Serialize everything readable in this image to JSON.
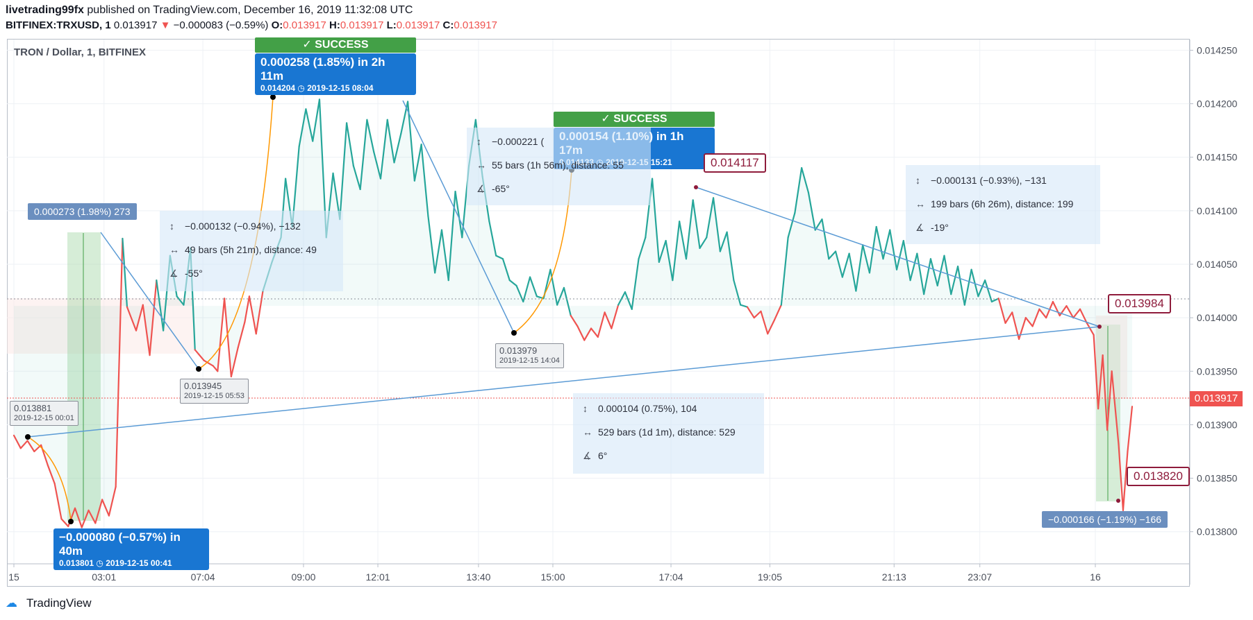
{
  "header": {
    "publisher": "livetrading99fx",
    "published_text": "published on TradingView.com, December 16, 2019 11:32:08 UTC",
    "symbol": "BITFINEX:TRXUSD, 1",
    "last": "0.013917",
    "change": "−0.000083 (−0.59%)",
    "o_label": "O:",
    "o": "0.013917",
    "h_label": "H:",
    "h": "0.013917",
    "l_label": "L:",
    "l": "0.013917",
    "c_label": "C:",
    "c": "0.013917"
  },
  "chart_title": "TRON / Dollar, 1, BITFINEX",
  "current_price": "0.013917",
  "colors": {
    "up": "#26a69a",
    "down": "#ef5350",
    "callout": "#1976d2",
    "success": "#43a047",
    "pathline": "#ff9800",
    "trend": "#5b9bd5",
    "note_border": "#8e1b3b"
  },
  "chart_data": {
    "type": "line",
    "ylim": [
      0.01377,
      0.01426
    ],
    "y_ticks": [
      "0.014250",
      "0.014200",
      "0.014150",
      "0.014100",
      "0.014050",
      "0.014000",
      "0.013950",
      "0.013900",
      "0.013850",
      "0.013800"
    ],
    "x_ticks": [
      "15",
      "03:01",
      "07:04",
      "09:00",
      "12:01",
      "13:40",
      "15:00",
      "17:04",
      "19:05",
      "21:13",
      "23:07",
      "16"
    ],
    "reference_price": 0.014011,
    "series": [
      {
        "values": [
          [
            0,
            0.01389
          ],
          [
            6,
            0.013878
          ],
          [
            12,
            0.013885
          ],
          [
            18,
            0.013875
          ],
          [
            24,
            0.013881
          ],
          [
            30,
            0.013862
          ],
          [
            36,
            0.013845
          ],
          [
            42,
            0.013812
          ],
          [
            48,
            0.013805
          ],
          [
            54,
            0.013822
          ],
          [
            60,
            0.013804
          ],
          [
            66,
            0.01382
          ],
          [
            72,
            0.013808
          ],
          [
            78,
            0.01383
          ],
          [
            84,
            0.013815
          ],
          [
            90,
            0.013842
          ],
          [
            96,
            0.014074
          ],
          [
            100,
            0.01401
          ],
          [
            108,
            0.013988
          ],
          [
            114,
            0.014012
          ],
          [
            120,
            0.013965
          ],
          [
            126,
            0.014035
          ],
          [
            132,
            0.013988
          ],
          [
            138,
            0.014058
          ],
          [
            144,
            0.01402
          ],
          [
            150,
            0.014012
          ],
          [
            156,
            0.014065
          ],
          [
            160,
            0.01397
          ],
          [
            168,
            0.01396
          ],
          [
            176,
            0.013955
          ],
          [
            180,
            0.01395
          ],
          [
            186,
            0.014018
          ],
          [
            192,
            0.013945
          ],
          [
            198,
            0.013972
          ],
          [
            204,
            0.013996
          ],
          [
            208,
            0.01402
          ],
          [
            214,
            0.013985
          ],
          [
            220,
            0.014025
          ],
          [
            228,
            0.014052
          ],
          [
            236,
            0.014075
          ],
          [
            240,
            0.01413
          ],
          [
            246,
            0.014085
          ],
          [
            252,
            0.01416
          ],
          [
            258,
            0.014195
          ],
          [
            264,
            0.014165
          ],
          [
            270,
            0.014204
          ],
          [
            276,
            0.014075
          ],
          [
            282,
            0.014135
          ],
          [
            288,
            0.014092
          ],
          [
            294,
            0.014182
          ],
          [
            300,
            0.014142
          ],
          [
            306,
            0.01412
          ],
          [
            312,
            0.014185
          ],
          [
            318,
            0.014155
          ],
          [
            324,
            0.01413
          ],
          [
            330,
            0.014185
          ],
          [
            336,
            0.014145
          ],
          [
            342,
            0.014172
          ],
          [
            348,
            0.014202
          ],
          [
            354,
            0.014128
          ],
          [
            360,
            0.014162
          ],
          [
            366,
            0.014095
          ],
          [
            372,
            0.014042
          ],
          [
            378,
            0.014082
          ],
          [
            384,
            0.014035
          ],
          [
            390,
            0.014118
          ],
          [
            396,
            0.014075
          ],
          [
            402,
            0.014142
          ],
          [
            408,
            0.014185
          ],
          [
            414,
            0.014132
          ],
          [
            420,
            0.01409
          ],
          [
            426,
            0.014058
          ],
          [
            432,
            0.014055
          ],
          [
            438,
            0.014035
          ],
          [
            444,
            0.01403
          ],
          [
            450,
            0.014015
          ],
          [
            456,
            0.014038
          ],
          [
            462,
            0.01402
          ],
          [
            468,
            0.014018
          ],
          [
            474,
            0.014045
          ],
          [
            480,
            0.014012
          ],
          [
            486,
            0.014028
          ],
          [
            492,
            0.014002
          ],
          [
            498,
            0.013992
          ],
          [
            504,
            0.013979
          ],
          [
            510,
            0.01399
          ],
          [
            516,
            0.013982
          ],
          [
            522,
            0.014005
          ],
          [
            528,
            0.01399
          ],
          [
            534,
            0.014012
          ],
          [
            540,
            0.014024
          ],
          [
            546,
            0.014008
          ],
          [
            552,
            0.014055
          ],
          [
            558,
            0.014075
          ],
          [
            564,
            0.01413
          ],
          [
            570,
            0.014052
          ],
          [
            576,
            0.014072
          ],
          [
            582,
            0.014035
          ],
          [
            588,
            0.01409
          ],
          [
            594,
            0.014055
          ],
          [
            600,
            0.01411
          ],
          [
            606,
            0.014065
          ],
          [
            612,
            0.014075
          ],
          [
            618,
            0.014112
          ],
          [
            624,
            0.014062
          ],
          [
            630,
            0.01408
          ],
          [
            636,
            0.014035
          ],
          [
            642,
            0.014012
          ],
          [
            648,
            0.01401
          ],
          [
            654,
            0.014
          ],
          [
            660,
            0.014006
          ],
          [
            666,
            0.013985
          ],
          [
            672,
            0.013998
          ],
          [
            678,
            0.014012
          ],
          [
            684,
            0.014075
          ],
          [
            690,
            0.014098
          ],
          [
            696,
            0.01414
          ],
          [
            702,
            0.014117
          ],
          [
            708,
            0.014082
          ],
          [
            714,
            0.014092
          ],
          [
            720,
            0.014055
          ],
          [
            726,
            0.014062
          ],
          [
            732,
            0.014038
          ],
          [
            738,
            0.01406
          ],
          [
            744,
            0.014025
          ],
          [
            750,
            0.014068
          ],
          [
            756,
            0.014042
          ],
          [
            762,
            0.014085
          ],
          [
            768,
            0.014055
          ],
          [
            774,
            0.014082
          ],
          [
            780,
            0.014045
          ],
          [
            786,
            0.014072
          ],
          [
            792,
            0.014035
          ],
          [
            798,
            0.01406
          ],
          [
            804,
            0.014022
          ],
          [
            810,
            0.014055
          ],
          [
            816,
            0.01403
          ],
          [
            822,
            0.014058
          ],
          [
            828,
            0.014022
          ],
          [
            834,
            0.014048
          ],
          [
            840,
            0.014012
          ],
          [
            846,
            0.014045
          ],
          [
            852,
            0.01402
          ],
          [
            858,
            0.014035
          ],
          [
            864,
            0.014015
          ],
          [
            870,
            0.014018
          ],
          [
            876,
            0.013995
          ],
          [
            882,
            0.014005
          ],
          [
            888,
            0.01398
          ],
          [
            894,
            0.014
          ],
          [
            900,
            0.013992
          ],
          [
            906,
            0.014008
          ],
          [
            912,
            0.014
          ],
          [
            918,
            0.014015
          ],
          [
            924,
            0.014002
          ],
          [
            930,
            0.014011
          ],
          [
            936,
            0.014
          ],
          [
            942,
            0.014008
          ],
          [
            948,
            0.013995
          ],
          [
            954,
            0.013984
          ],
          [
            958,
            0.013915
          ],
          [
            962,
            0.013965
          ],
          [
            966,
            0.013895
          ],
          [
            970,
            0.01395
          ],
          [
            976,
            0.013882
          ],
          [
            980,
            0.01382
          ],
          [
            984,
            0.013875
          ],
          [
            988,
            0.013917
          ]
        ]
      }
    ]
  },
  "annotations": {
    "success_label": "✓ SUCCESS",
    "callout_a": {
      "main": "0.000258 (1.85%) in 2h 11m",
      "sub": "0.014204 ◷ 2019-12-15  08:04"
    },
    "callout_b": {
      "main": "0.000154 (1.10%) in 1h 17m",
      "sub": "0.014133 ◷ 2019-12-15  15:21"
    },
    "callout_c": {
      "main": "−0.000080 (−0.57%) in 40m",
      "sub": "0.013801 ◷ 2019-12-15  00:41"
    },
    "steel_a": "0.000273 (1.98%) 273",
    "steel_b": "−0.000166 (−1.19%) −166",
    "stat1": {
      "r1": "−0.000132 (−0.94%), −132",
      "r2": "49 bars (5h 21m), distance: 49",
      "r3": "-55°"
    },
    "stat2": {
      "r1": "−0.000221 (",
      "r2": "55 bars (1h 56m), distance: 55",
      "r3": "-65°"
    },
    "stat3": {
      "r1": "−0.000131 (−0.93%), −131",
      "r2": "199 bars (6h 26m), distance: 199",
      "r3": "-19°"
    },
    "stat4": {
      "r1": "0.000104 (0.75%), 104",
      "r2": "529 bars (1d 1m), distance: 529",
      "r3": "6°"
    },
    "note1": {
      "price": "0.013881",
      "date": "2019-12-15 00:01"
    },
    "note2": {
      "price": "0.013945",
      "date": "2019-12-15 05:53"
    },
    "note3": {
      "price": "0.013979",
      "date": "2019-12-15 14:04"
    },
    "pbox1": "0.014117",
    "pbox2": "0.013984",
    "pbox3": "0.013820"
  },
  "logo": "TradingView"
}
